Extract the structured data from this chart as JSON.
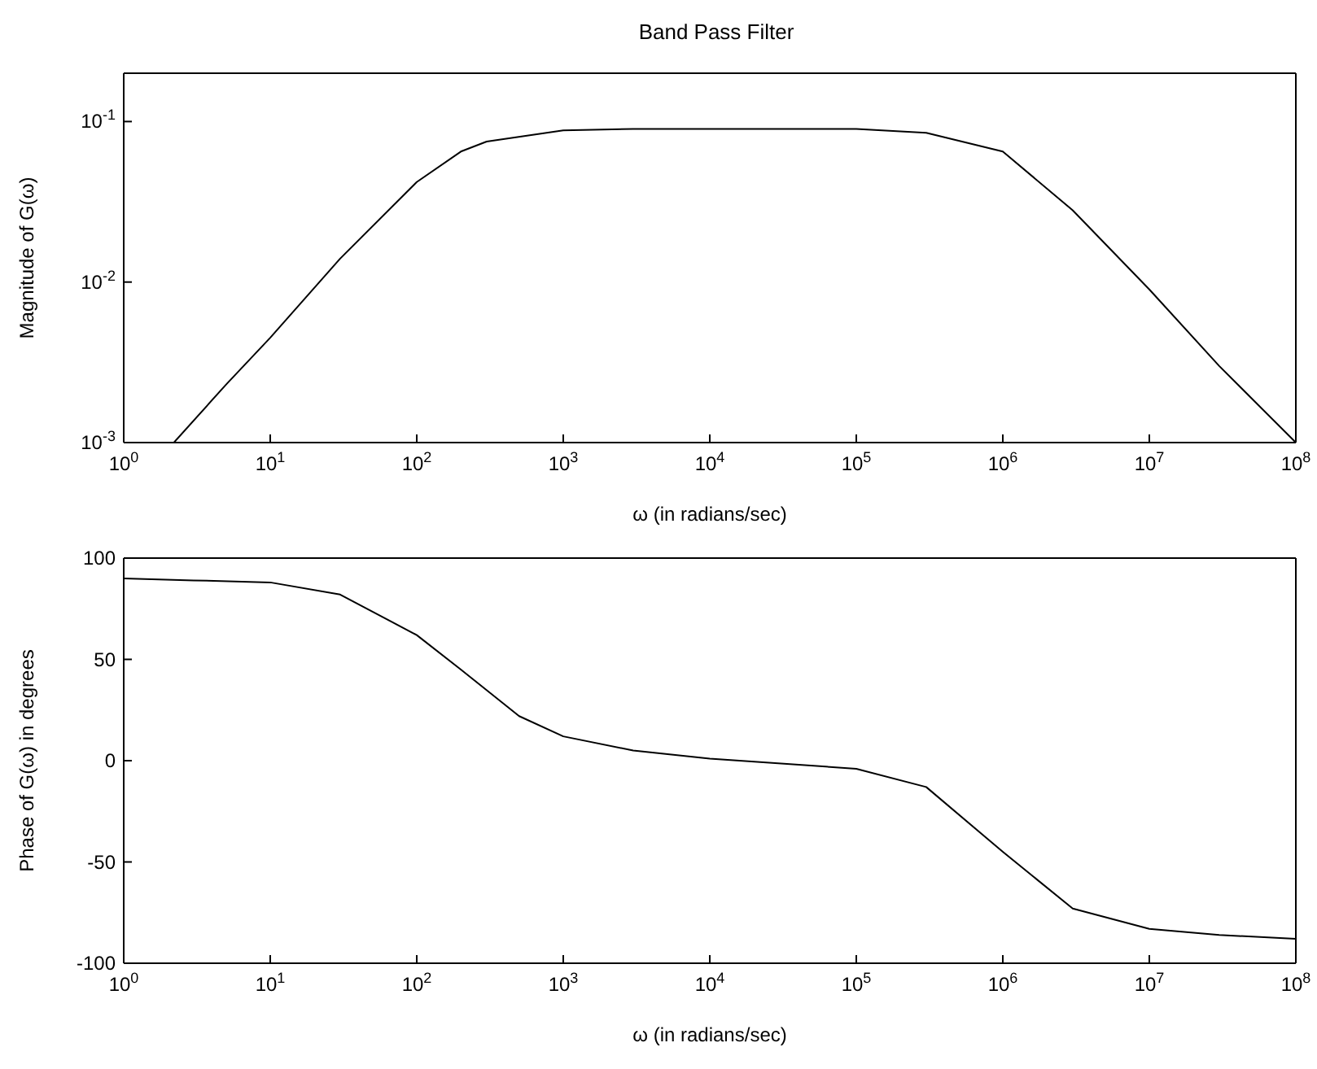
{
  "chart_data": [
    {
      "type": "line",
      "title": "Band Pass Filter",
      "xlabel": "ω (in radians/sec)",
      "ylabel": "Magnitude of G(ω)",
      "log": "xy",
      "grid": false,
      "marker": "none",
      "line_style": "solid",
      "x": [
        2.2,
        5,
        10,
        30,
        100,
        200,
        300,
        1000,
        3000,
        10000,
        100000,
        300000,
        1000000,
        3000000,
        10000000,
        30000000,
        100000000
      ],
      "series": [
        {
          "color": "#000000",
          "values": [
            0.001,
            0.0023,
            0.0045,
            0.014,
            0.042,
            0.065,
            0.075,
            0.088,
            0.09,
            0.09,
            0.09,
            0.085,
            0.065,
            0.028,
            0.009,
            0.003,
            0.001
          ]
        }
      ],
      "xlim": [
        1,
        100000000
      ],
      "ylim": [
        0.001,
        0.2
      ],
      "xticks": [
        {
          "value": 1,
          "label": "10$^{0}$"
        },
        {
          "value": 10,
          "label": "10$^{1}$"
        },
        {
          "value": 100,
          "label": "10$^{2}$"
        },
        {
          "value": 1000,
          "label": "10$^{3}$"
        },
        {
          "value": 10000,
          "label": "10$^{4}$"
        },
        {
          "value": 100000,
          "label": "10$^{5}$"
        },
        {
          "value": 1000000,
          "label": "10$^{6}$"
        },
        {
          "value": 10000000,
          "label": "10$^{7}$"
        },
        {
          "value": 100000000,
          "label": "10$^{8}$"
        }
      ],
      "yticks": [
        {
          "value": 0.001,
          "label": "10$^{-3}$"
        },
        {
          "value": 0.01,
          "label": "10$^{-2}$"
        },
        {
          "value": 0.1,
          "label": "10$^{-1}$"
        }
      ]
    },
    {
      "type": "line",
      "xlabel": "ω (in radians/sec)",
      "ylabel": "Phase of G(ω) in degrees",
      "log": "x",
      "grid": false,
      "marker": "none",
      "line_style": "solid",
      "x": [
        1,
        3,
        10,
        30,
        100,
        200,
        500,
        1000,
        3000,
        10000,
        100000,
        300000,
        1000000,
        3000000,
        10000000,
        30000000,
        100000000
      ],
      "series": [
        {
          "color": "#000000",
          "values": [
            90,
            89,
            88,
            82,
            62,
            45,
            22,
            12,
            5,
            1,
            -4,
            -13,
            -45,
            -73,
            -83,
            -86,
            -88
          ]
        }
      ],
      "xlim": [
        1,
        100000000
      ],
      "ylim": [
        -100,
        100
      ],
      "xticks": [
        {
          "value": 1,
          "label": "10$^{0}$"
        },
        {
          "value": 10,
          "label": "10$^{1}$"
        },
        {
          "value": 100,
          "label": "10$^{2}$"
        },
        {
          "value": 1000,
          "label": "10$^{3}$"
        },
        {
          "value": 10000,
          "label": "10$^{4}$"
        },
        {
          "value": 100000,
          "label": "10$^{5}$"
        },
        {
          "value": 1000000,
          "label": "10$^{6}$"
        },
        {
          "value": 10000000,
          "label": "10$^{7}$"
        },
        {
          "value": 100000000,
          "label": "10$^{8}$"
        }
      ],
      "yticks": [
        -100,
        -50,
        0,
        50,
        100
      ]
    }
  ]
}
